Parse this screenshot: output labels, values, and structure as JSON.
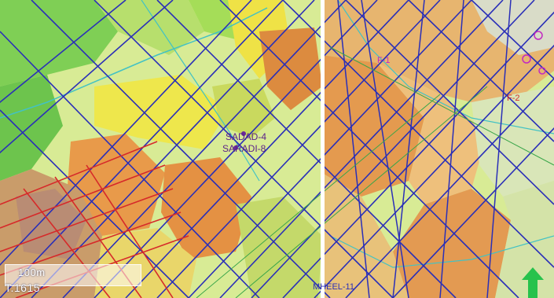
{
  "map": {
    "labels": {
      "well_1": "SADAD-4",
      "well_2": "SARADI-8",
      "line_1": "MHEEL-11",
      "area_1": "F-1",
      "area_2": "F-2"
    }
  },
  "overlay": {
    "scale_label": "100m",
    "coord_label": "T.1615"
  },
  "icons": {
    "north_arrow": "north-arrow-icon"
  },
  "colors": {
    "base_green": "#d7ea8c",
    "forest_green": "#8fd36b",
    "orange": "#e7a04a",
    "yellow": "#f2e64a",
    "line_blue": "#2a2fb8",
    "line_red": "#d62a2a",
    "line_cyan": "#43c2c4",
    "north_green": "#27c24c"
  }
}
